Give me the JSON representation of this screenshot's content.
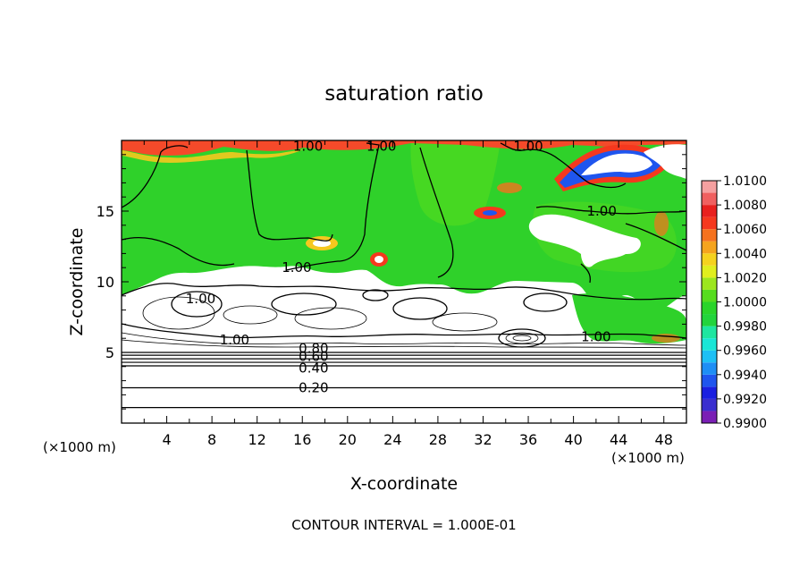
{
  "chart_data": {
    "type": "heatmap",
    "title": "saturation ratio",
    "xlabel": "X-coordinate",
    "ylabel": "Z-coordinate",
    "x_unit_left": "(×1000 m)",
    "x_unit_right": "(×1000 m)",
    "xlim": [
      0,
      50
    ],
    "ylim": [
      0,
      20
    ],
    "x_ticks": [
      4,
      8,
      12,
      16,
      20,
      24,
      28,
      32,
      36,
      40,
      44,
      48
    ],
    "y_ticks": [
      5,
      10,
      15
    ],
    "contour_interval_text": "CONTOUR INTERVAL = 1.000E-01",
    "colorbar": {
      "labels": [
        "1.0100",
        "1.0080",
        "1.0060",
        "1.0040",
        "1.0020",
        "1.0000",
        "0.9980",
        "0.9960",
        "0.9940",
        "0.9920",
        "0.9900"
      ],
      "bands": [
        {
          "from": 0.99,
          "to": 0.991,
          "color": "#7a1fb5"
        },
        {
          "from": 0.991,
          "to": 0.992,
          "color": "#3a2fcf"
        },
        {
          "from": 0.992,
          "to": 0.993,
          "color": "#1a1fe0"
        },
        {
          "from": 0.993,
          "to": 0.994,
          "color": "#1f55ee"
        },
        {
          "from": 0.994,
          "to": 0.995,
          "color": "#1e8ef5"
        },
        {
          "from": 0.995,
          "to": 0.996,
          "color": "#1ec0f5"
        },
        {
          "from": 0.996,
          "to": 0.997,
          "color": "#19e6d6"
        },
        {
          "from": 0.997,
          "to": 0.998,
          "color": "#1ee6a0"
        },
        {
          "from": 0.998,
          "to": 0.999,
          "color": "#22d43c"
        },
        {
          "from": 0.999,
          "to": 1.0,
          "color": "#2ad42a"
        },
        {
          "from": 1.0,
          "to": 1.001,
          "color": "#56dc1e"
        },
        {
          "from": 1.001,
          "to": 1.002,
          "color": "#9ce61e"
        },
        {
          "from": 1.002,
          "to": 1.003,
          "color": "#e0ee1e"
        },
        {
          "from": 1.003,
          "to": 1.004,
          "color": "#f5d21e"
        },
        {
          "from": 1.004,
          "to": 1.005,
          "color": "#f5a41e"
        },
        {
          "from": 1.005,
          "to": 1.006,
          "color": "#f5721e"
        },
        {
          "from": 1.006,
          "to": 1.007,
          "color": "#f5381e"
        },
        {
          "from": 1.007,
          "to": 1.008,
          "color": "#e8201e"
        },
        {
          "from": 1.008,
          "to": 1.009,
          "color": "#f06060"
        },
        {
          "from": 1.009,
          "to": 1.01,
          "color": "#f5a0a0"
        }
      ]
    },
    "contour_labels": [
      {
        "text": "1.00",
        "x": 16.5,
        "y": 19.6
      },
      {
        "text": "1.00",
        "x": 23.0,
        "y": 19.6
      },
      {
        "text": "1.00",
        "x": 36.0,
        "y": 19.6
      },
      {
        "text": "1.00",
        "x": 42.5,
        "y": 15.0
      },
      {
        "text": "1.00",
        "x": 15.5,
        "y": 11.0
      },
      {
        "text": "1.00",
        "x": 7.0,
        "y": 8.8
      },
      {
        "text": "1.00",
        "x": 10.0,
        "y": 5.9
      },
      {
        "text": "1.00",
        "x": 42.0,
        "y": 6.1
      },
      {
        "text": "0.80",
        "x": 17.0,
        "y": 5.3
      },
      {
        "text": "0.60",
        "x": 17.0,
        "y": 4.7
      },
      {
        "text": "0.40",
        "x": 17.0,
        "y": 3.9
      },
      {
        "text": "0.20",
        "x": 17.0,
        "y": 2.5
      }
    ],
    "horizontal_contours_y": [
      4.05,
      4.3,
      4.55,
      4.8,
      5.0,
      2.5,
      1.1
    ],
    "regions": {
      "supersaturated_green_layer_z": [
        10.0,
        20.0
      ],
      "subsaturated_white_layer_z": [
        0.0,
        10.0
      ],
      "white_interior_patch_x": [
        37.0,
        46.0
      ],
      "white_interior_patch_z": [
        11.5,
        14.5
      ]
    }
  }
}
